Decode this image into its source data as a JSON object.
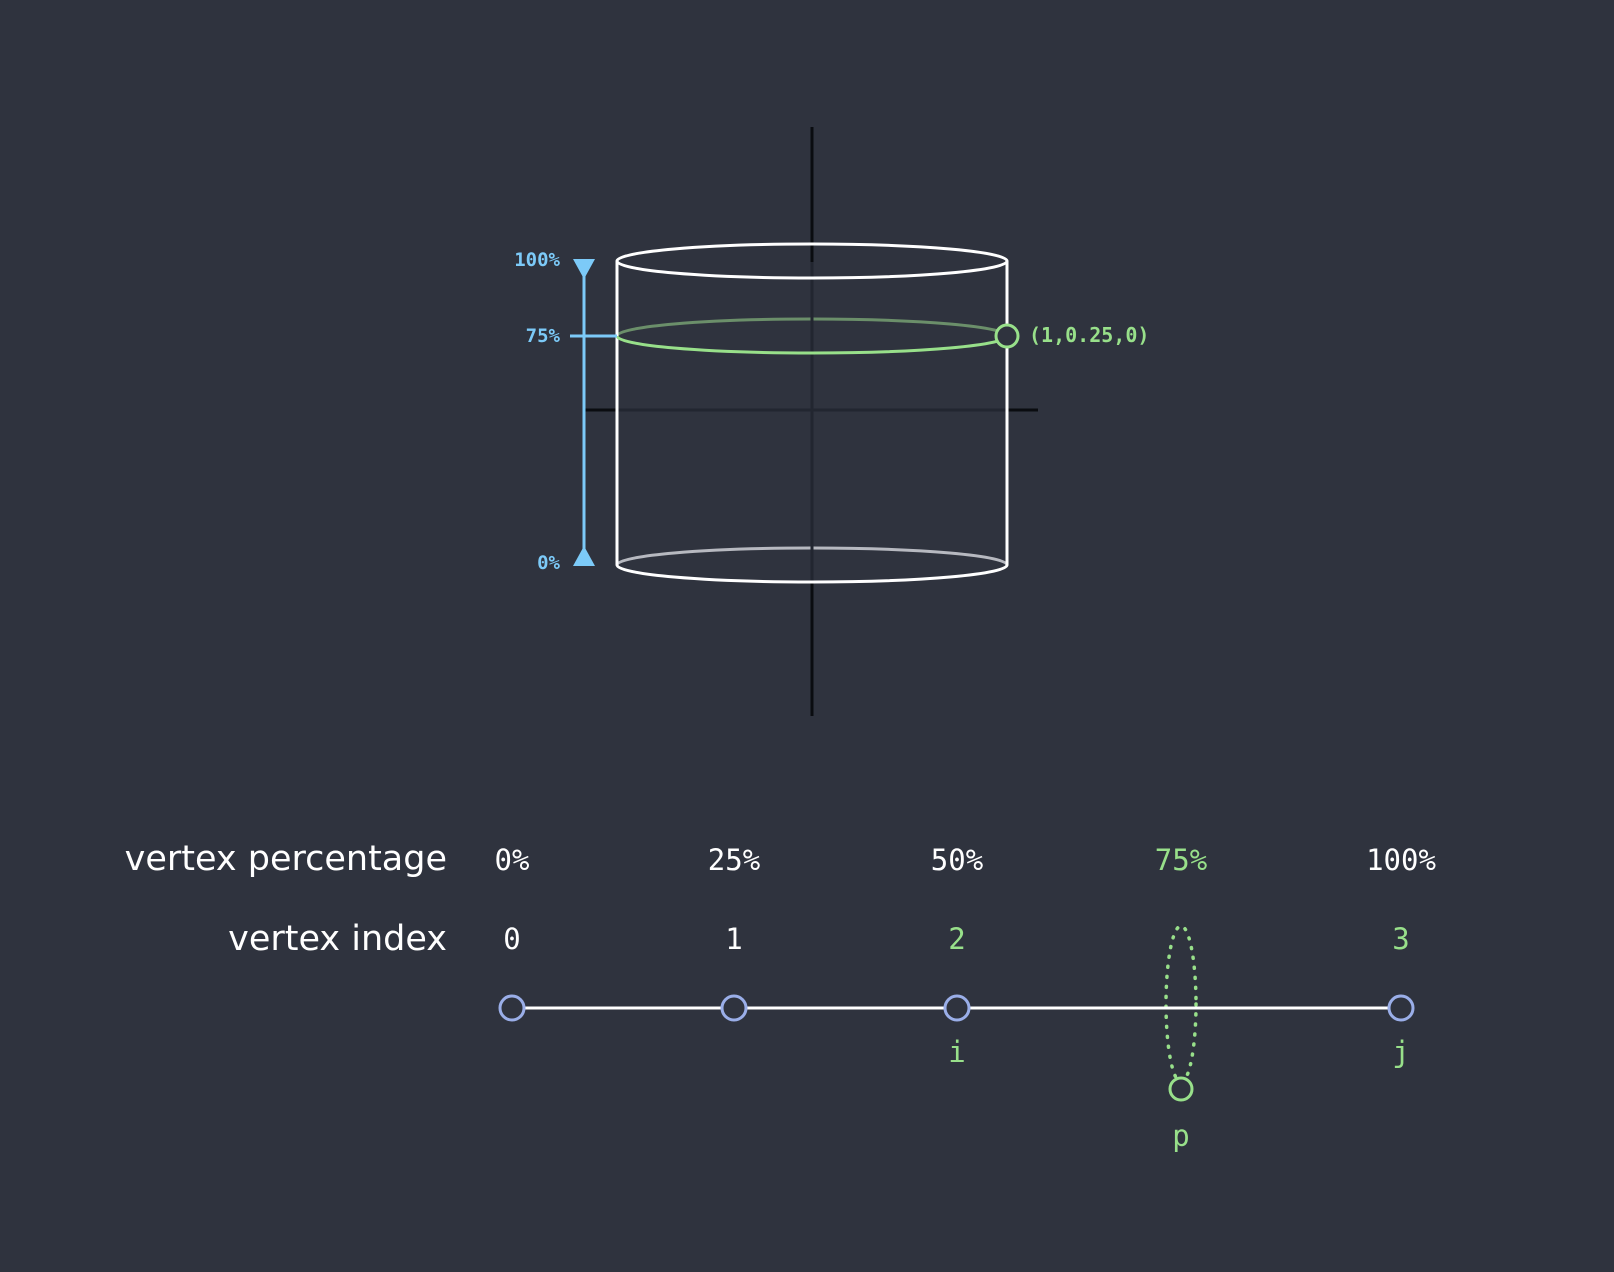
{
  "colors": {
    "background": "#2f333e",
    "white": "#ffffff",
    "green": "#98e08a",
    "blue": "#7ccaf8",
    "vertex": "#9aaee8",
    "axis": "#0a0c10"
  },
  "cylinder": {
    "levels": [
      {
        "label": "100%",
        "value": 1.0
      },
      {
        "label": "75%",
        "value": 0.75,
        "highlight": true
      },
      {
        "label": "0%",
        "value": 0.0
      }
    ],
    "point_label": "(1,0.25,0)"
  },
  "row_labels": {
    "percentage": "vertex percentage",
    "index": "vertex index"
  },
  "vertices": [
    {
      "percentage": "0%",
      "index": "0",
      "highlight": false,
      "marker": ""
    },
    {
      "percentage": "25%",
      "index": "1",
      "highlight": false,
      "marker": ""
    },
    {
      "percentage": "50%",
      "index": "2",
      "highlight": true,
      "marker": "i"
    },
    {
      "percentage": "100%",
      "index": "3",
      "highlight": true,
      "marker": "j"
    }
  ],
  "interpolated": {
    "percentage": "75%",
    "label": "p"
  }
}
